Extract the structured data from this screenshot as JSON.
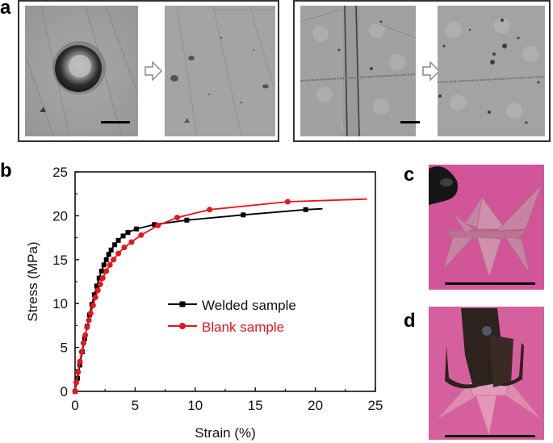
{
  "figure": {
    "panels": {
      "a": {
        "label": "a",
        "groups": [
          {
            "before_image": "micrograph-hole-defect",
            "after_image": "micrograph-healed-surface",
            "arrow": "hollow-right-arrow",
            "scale_bar": true
          },
          {
            "before_image": "micrograph-cut-line",
            "after_image": "micrograph-welded-surface",
            "arrow": "hollow-right-arrow",
            "scale_bar": true
          }
        ]
      },
      "b": {
        "label": "b"
      },
      "c": {
        "label": "c",
        "image": "photo-folded-star-held-by-tweezers",
        "background_color": "#d2559a",
        "scale_bar": true
      },
      "d": {
        "label": "d",
        "image": "photo-star-gripped-by-tweezers",
        "background_color": "#d6609e",
        "scale_bar": true
      }
    }
  },
  "chart_data": {
    "type": "line",
    "title": "",
    "xlabel": "Strain (%)",
    "ylabel": "Stress (MPa)",
    "xlim": [
      0,
      25
    ],
    "ylim": [
      0,
      25
    ],
    "x_ticks": [
      "0",
      "5",
      "10",
      "15",
      "20",
      "25"
    ],
    "y_ticks": [
      "0",
      "5",
      "10",
      "15",
      "20",
      "25"
    ],
    "grid": false,
    "legend_position": "center-right",
    "legend": [
      {
        "name": "Welded sample",
        "color": "#000000",
        "marker": "square"
      },
      {
        "name": "Blank sample",
        "color": "#e8141c",
        "marker": "circle"
      }
    ],
    "series": [
      {
        "name": "Welded sample",
        "color": "#000000",
        "marker": "square",
        "x": [
          0,
          0.2,
          0.4,
          0.6,
          0.8,
          1.0,
          1.2,
          1.4,
          1.6,
          1.8,
          2.0,
          2.2,
          2.4,
          2.6,
          2.8,
          3.0,
          3.3,
          3.6,
          4.0,
          4.4,
          5.1,
          6.6,
          9.3,
          14.0,
          19.2,
          20.6
        ],
        "y": [
          0,
          1.5,
          3.0,
          4.5,
          6.0,
          7.4,
          8.7,
          9.9,
          11.0,
          12.0,
          12.9,
          13.7,
          14.4,
          15.0,
          15.6,
          16.1,
          16.7,
          17.2,
          17.7,
          18.1,
          18.5,
          19.0,
          19.5,
          20.1,
          20.7,
          20.8
        ]
      },
      {
        "name": "Blank sample",
        "color": "#e8141c",
        "marker": "circle",
        "x": [
          0,
          0.1,
          0.25,
          0.4,
          0.55,
          0.7,
          0.85,
          1.0,
          1.15,
          1.3,
          1.5,
          1.7,
          1.9,
          2.1,
          2.3,
          2.6,
          2.9,
          3.2,
          3.6,
          4.1,
          4.7,
          5.5,
          6.9,
          8.5,
          11.2,
          17.7,
          24.3
        ],
        "y": [
          0,
          1.0,
          2.2,
          3.4,
          4.5,
          5.5,
          6.4,
          7.3,
          8.1,
          8.9,
          9.8,
          10.7,
          11.5,
          12.2,
          12.9,
          13.7,
          14.4,
          15.0,
          15.7,
          16.4,
          17.0,
          17.8,
          18.9,
          19.8,
          20.7,
          21.6,
          21.9
        ]
      }
    ]
  }
}
